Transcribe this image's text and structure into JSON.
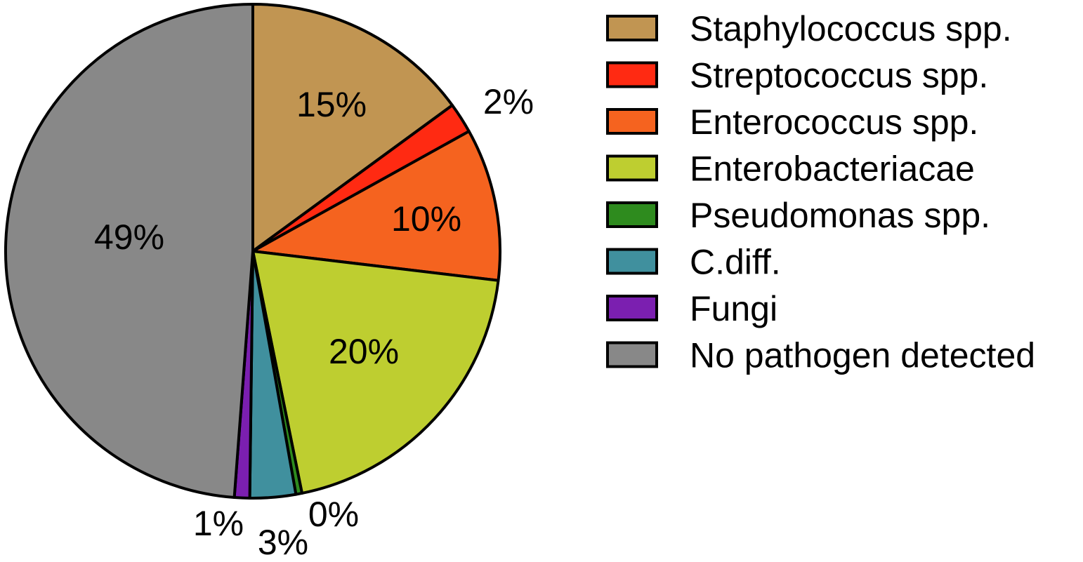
{
  "chart_data": {
    "type": "pie",
    "legend_position": "right",
    "slices": [
      {
        "name": "Staphylococcus spp.",
        "value": 15,
        "label": "15%",
        "color": "#C19552"
      },
      {
        "name": "Streptococcus spp.",
        "value": 2,
        "label": "2%",
        "color": "#FF2A12"
      },
      {
        "name": "Enterococcus spp.",
        "value": 10,
        "label": "10%",
        "color": "#F5631F"
      },
      {
        "name": "Enterobacteriacae",
        "value": 20,
        "label": "20%",
        "color": "#BECE30"
      },
      {
        "name": "Pseudomonas spp.",
        "value": 0.4,
        "label": "0%",
        "color": "#2E8B1E"
      },
      {
        "name": "C.diff.",
        "value": 3,
        "label": "3%",
        "color": "#40909E"
      },
      {
        "name": "Fungi",
        "value": 1,
        "label": "1%",
        "color": "#7B1FB0"
      },
      {
        "name": "No pathogen detected",
        "value": 49,
        "label": "49%",
        "color": "#888888"
      }
    ]
  }
}
